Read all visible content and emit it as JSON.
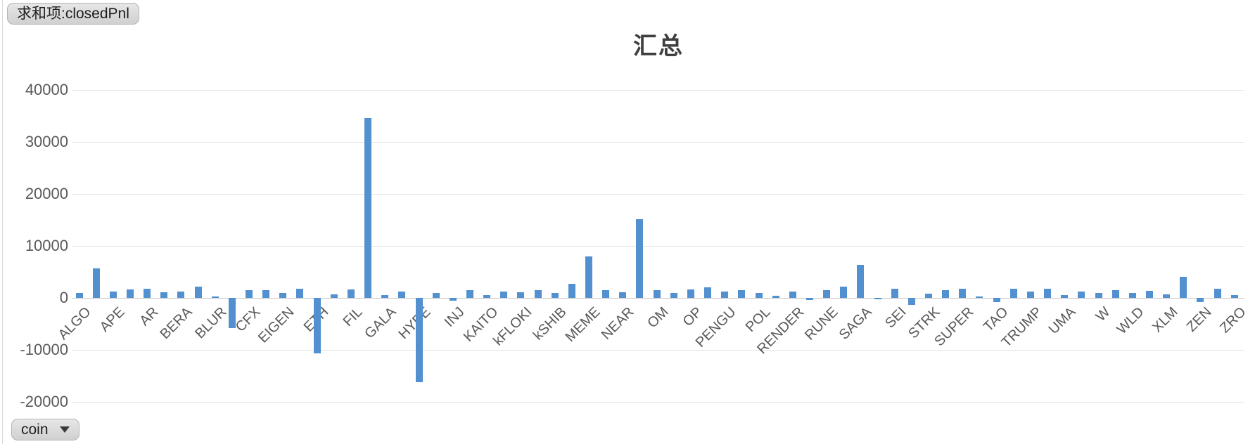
{
  "buttons": {
    "value_field": "求和项:closedPnl",
    "category_field": "coin"
  },
  "chart": {
    "title": "汇总"
  },
  "chart_data": {
    "type": "bar",
    "title": "汇总",
    "value_field": "closedPnl",
    "category_field": "coin",
    "ylim": [
      -20000,
      40000
    ],
    "y_ticks": [
      40000,
      30000,
      20000,
      10000,
      0,
      -10000,
      -20000
    ],
    "grid": true,
    "legend_position": "none",
    "bar_color": "#5290d0",
    "x_label_interval": 2,
    "x_label_rotation_deg": 45,
    "bars": [
      {
        "label": "ALGO",
        "value": 1000
      },
      {
        "label": "",
        "value": 5700
      },
      {
        "label": "APE",
        "value": 1200
      },
      {
        "label": "",
        "value": 1600
      },
      {
        "label": "AR",
        "value": 1700
      },
      {
        "label": "",
        "value": 1050
      },
      {
        "label": "BERA",
        "value": 1150
      },
      {
        "label": "",
        "value": 2100
      },
      {
        "label": "BLUR",
        "value": 300
      },
      {
        "label": "",
        "value": -5800
      },
      {
        "label": "CFX",
        "value": 1500
      },
      {
        "label": "",
        "value": 1500
      },
      {
        "label": "EIGEN",
        "value": 1000
      },
      {
        "label": "",
        "value": 1700
      },
      {
        "label": "ETH",
        "value": -10650
      },
      {
        "label": "",
        "value": 700
      },
      {
        "label": "FIL",
        "value": 1600
      },
      {
        "label": "",
        "value": 34600
      },
      {
        "label": "GALA",
        "value": 600
      },
      {
        "label": "",
        "value": 1150
      },
      {
        "label": "HYPE",
        "value": -16200
      },
      {
        "label": "",
        "value": 1000
      },
      {
        "label": "INJ",
        "value": -500
      },
      {
        "label": "",
        "value": 1550
      },
      {
        "label": "KAITO",
        "value": 500
      },
      {
        "label": "",
        "value": 1200
      },
      {
        "label": "kFLOKI",
        "value": 1100
      },
      {
        "label": "",
        "value": 1450
      },
      {
        "label": "kSHIB",
        "value": 1000
      },
      {
        "label": "",
        "value": 2650
      },
      {
        "label": "MEME",
        "value": 8000
      },
      {
        "label": "",
        "value": 1550
      },
      {
        "label": "NEAR",
        "value": 1050
      },
      {
        "label": "",
        "value": 15100
      },
      {
        "label": "OM",
        "value": 1500
      },
      {
        "label": "",
        "value": 950
      },
      {
        "label": "OP",
        "value": 1600
      },
      {
        "label": "",
        "value": 2000
      },
      {
        "label": "PENGU",
        "value": 1200
      },
      {
        "label": "",
        "value": 1550
      },
      {
        "label": "POL",
        "value": 900
      },
      {
        "label": "",
        "value": 450
      },
      {
        "label": "RENDER",
        "value": 1200
      },
      {
        "label": "",
        "value": -450
      },
      {
        "label": "RUNE",
        "value": 1450
      },
      {
        "label": "",
        "value": 2100
      },
      {
        "label": "SAGA",
        "value": 6400
      },
      {
        "label": "",
        "value": -300
      },
      {
        "label": "SEI",
        "value": 1800
      },
      {
        "label": "",
        "value": -1350
      },
      {
        "label": "STRK",
        "value": 800
      },
      {
        "label": "",
        "value": 1450
      },
      {
        "label": "SUPER",
        "value": 1700
      },
      {
        "label": "",
        "value": 300
      },
      {
        "label": "TAO",
        "value": -800
      },
      {
        "label": "",
        "value": 1700
      },
      {
        "label": "TRUMP",
        "value": 1200
      },
      {
        "label": "",
        "value": 1800
      },
      {
        "label": "UMA",
        "value": 600
      },
      {
        "label": "",
        "value": 1200
      },
      {
        "label": "W",
        "value": 900
      },
      {
        "label": "",
        "value": 1550
      },
      {
        "label": "WLD",
        "value": 900
      },
      {
        "label": "",
        "value": 1350
      },
      {
        "label": "XLM",
        "value": 700
      },
      {
        "label": "",
        "value": 4100
      },
      {
        "label": "ZEN",
        "value": -800
      },
      {
        "label": "",
        "value": 1800
      },
      {
        "label": "ZRO",
        "value": 600
      }
    ]
  }
}
